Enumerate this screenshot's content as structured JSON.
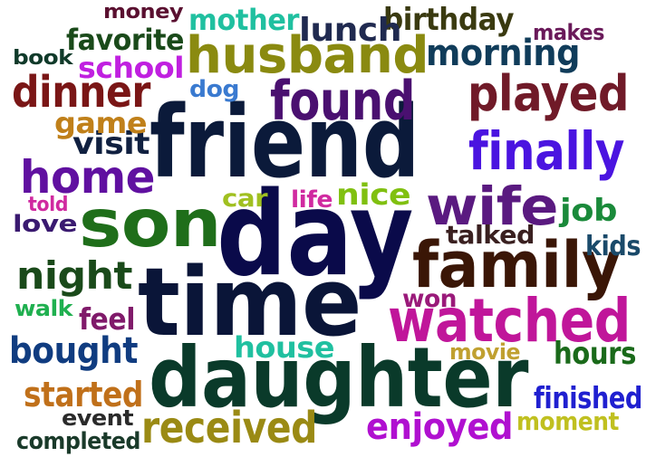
{
  "word_cloud": {
    "words": [
      {
        "text": "friend",
        "color": "#0b1a3a"
      },
      {
        "text": "day",
        "color": "#0a0a4a"
      },
      {
        "text": "time",
        "color": "#0a1538"
      },
      {
        "text": "daughter",
        "color": "#0a3a2a"
      },
      {
        "text": "son",
        "color": "#1f6e1a"
      },
      {
        "text": "family",
        "color": "#3a1606"
      },
      {
        "text": "husband",
        "color": "#8a8a10"
      },
      {
        "text": "found",
        "color": "#4a1070"
      },
      {
        "text": "wife",
        "color": "#5a1a80"
      },
      {
        "text": "watched",
        "color": "#c0169a"
      },
      {
        "text": "played",
        "color": "#701a28"
      },
      {
        "text": "dinner",
        "color": "#7a1616"
      },
      {
        "text": "finally",
        "color": "#4a14e0"
      },
      {
        "text": "home",
        "color": "#6010a0"
      },
      {
        "text": "received",
        "color": "#9a8a14"
      },
      {
        "text": "night",
        "color": "#1a4a1a"
      },
      {
        "text": "bought",
        "color": "#103c80"
      },
      {
        "text": "enjoyed",
        "color": "#b010d0"
      },
      {
        "text": "morning",
        "color": "#103c5a"
      },
      {
        "text": "started",
        "color": "#c0701a"
      },
      {
        "text": "finished",
        "color": "#2020d0"
      },
      {
        "text": "school",
        "color": "#c020e0"
      },
      {
        "text": "mother",
        "color": "#20c0a0"
      },
      {
        "text": "birthday",
        "color": "#3a3a10"
      },
      {
        "text": "favorite",
        "color": "#1a4a1a"
      },
      {
        "text": "lunch",
        "color": "#202a50"
      },
      {
        "text": "visit",
        "color": "#102040"
      },
      {
        "text": "hours",
        "color": "#1a6a1a"
      },
      {
        "text": "nice",
        "color": "#80c010"
      },
      {
        "text": "job",
        "color": "#1a8a3a"
      },
      {
        "text": "feel",
        "color": "#801a6a"
      },
      {
        "text": "house",
        "color": "#20c0a0"
      },
      {
        "text": "talked",
        "color": "#3a2020"
      },
      {
        "text": "game",
        "color": "#c0801a"
      },
      {
        "text": "kids",
        "color": "#1a4a6a"
      },
      {
        "text": "won",
        "color": "#9a1a7a"
      },
      {
        "text": "moment",
        "color": "#c0c020"
      },
      {
        "text": "money",
        "color": "#5a1030"
      },
      {
        "text": "makes",
        "color": "#6a1a5a"
      },
      {
        "text": "book",
        "color": "#103a2a"
      },
      {
        "text": "dog",
        "color": "#3a7ad0"
      },
      {
        "text": "car",
        "color": "#a0c020"
      },
      {
        "text": "life",
        "color": "#d02aa0"
      },
      {
        "text": "love",
        "color": "#3a1a70"
      },
      {
        "text": "told",
        "color": "#d02aa0"
      },
      {
        "text": "walk",
        "color": "#20b050"
      },
      {
        "text": "movie",
        "color": "#c0a030"
      },
      {
        "text": "event",
        "color": "#2a2a2a"
      },
      {
        "text": "completed",
        "color": "#1a3a2a"
      }
    ]
  }
}
